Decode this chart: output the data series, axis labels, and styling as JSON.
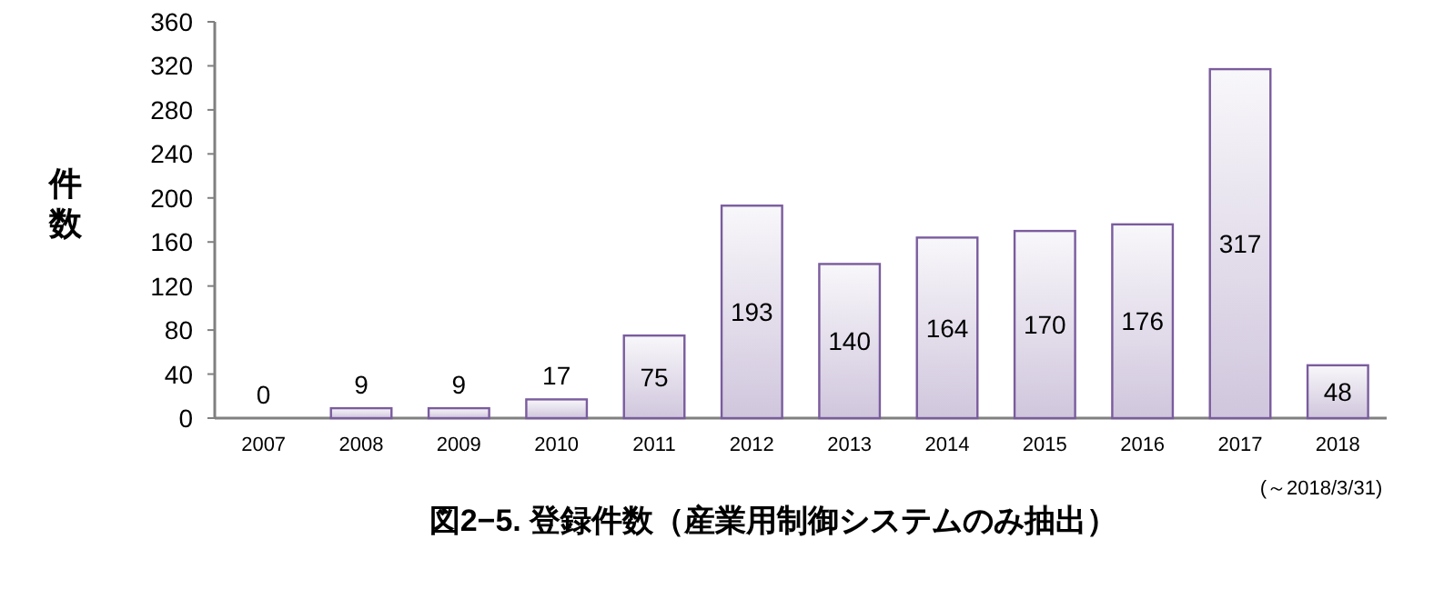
{
  "chart_data": {
    "type": "bar",
    "title": "図2−5. 登録件数（産業用制御システムのみ抽出）",
    "ylabel": "件数",
    "categories": [
      "2007",
      "2008",
      "2009",
      "2010",
      "2011",
      "2012",
      "2013",
      "2014",
      "2015",
      "2016",
      "2017",
      "2018"
    ],
    "values": [
      0,
      9,
      9,
      17,
      75,
      193,
      140,
      164,
      170,
      176,
      317,
      48
    ],
    "color": "#7a5c9e",
    "ylim": [
      0,
      360
    ],
    "yticks": [
      0,
      40,
      80,
      120,
      160,
      200,
      240,
      280,
      320,
      360
    ],
    "data_labels": true,
    "grid": false,
    "annotations": [
      "(～2018/3/31)"
    ]
  }
}
